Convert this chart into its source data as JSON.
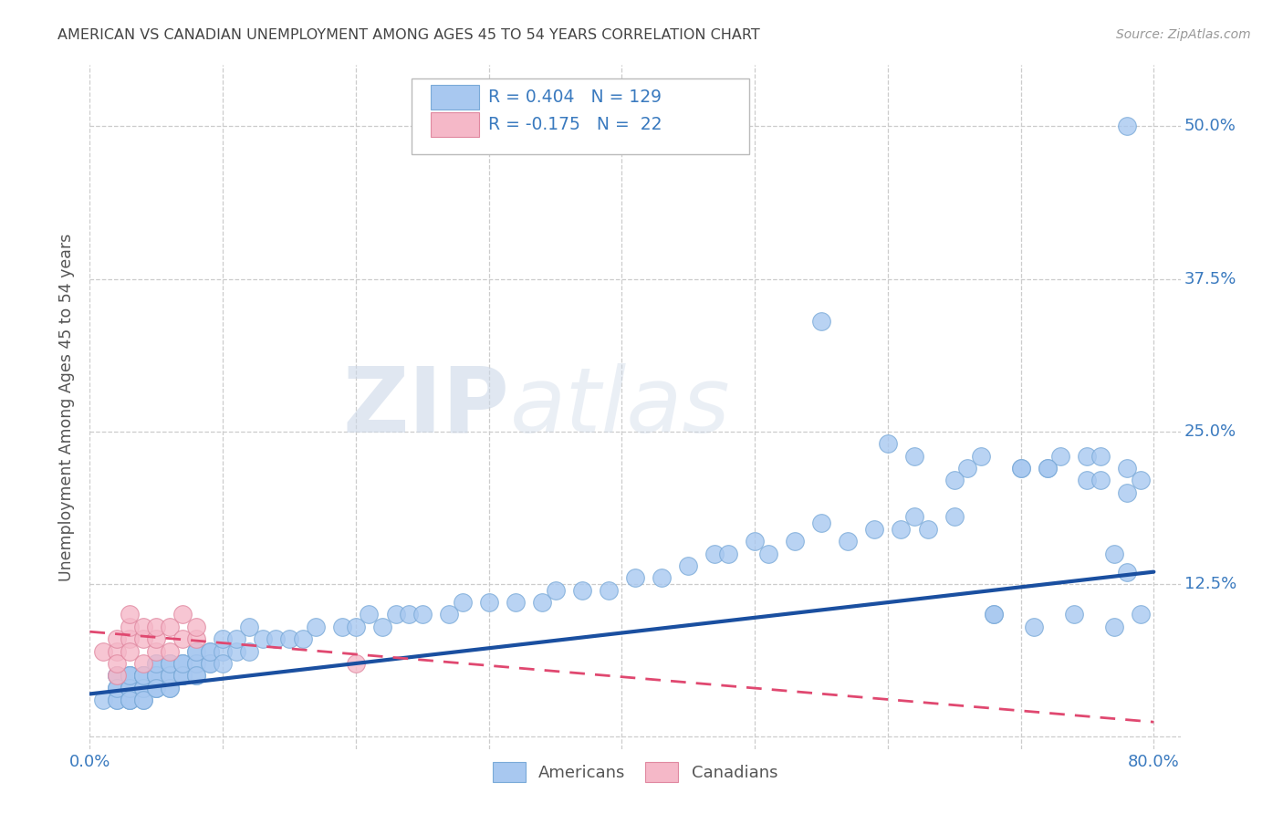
{
  "title": "AMERICAN VS CANADIAN UNEMPLOYMENT AMONG AGES 45 TO 54 YEARS CORRELATION CHART",
  "source": "Source: ZipAtlas.com",
  "ylabel": "Unemployment Among Ages 45 to 54 years",
  "xlim": [
    0.0,
    0.82
  ],
  "ylim": [
    -0.01,
    0.55
  ],
  "yticks": [
    0.0,
    0.125,
    0.25,
    0.375,
    0.5
  ],
  "yticklabels": [
    "",
    "12.5%",
    "25.0%",
    "37.5%",
    "50.0%"
  ],
  "watermark_zip": "ZIP",
  "watermark_atlas": "atlas",
  "american_color": "#a8c8f0",
  "american_edge": "#7aaad8",
  "canadian_color": "#f5b8c8",
  "canadian_edge": "#e088a0",
  "trend_american_color": "#1a4fa0",
  "trend_canadian_color": "#e04870",
  "background_color": "#ffffff",
  "grid_color": "#cccccc",
  "title_color": "#444444",
  "axis_label_color": "#3a7abf",
  "legend_text_color": "#3a7abf",
  "trend_am_x0": 0.0,
  "trend_am_x1": 0.8,
  "trend_am_y0": 0.035,
  "trend_am_y1": 0.135,
  "trend_ca_x0": 0.0,
  "trend_ca_x1": 0.8,
  "trend_ca_y0": 0.086,
  "trend_ca_y1": 0.012,
  "american_x": [
    0.01,
    0.02,
    0.02,
    0.02,
    0.02,
    0.02,
    0.02,
    0.02,
    0.03,
    0.03,
    0.03,
    0.03,
    0.03,
    0.03,
    0.03,
    0.03,
    0.03,
    0.03,
    0.03,
    0.04,
    0.04,
    0.04,
    0.04,
    0.04,
    0.04,
    0.04,
    0.04,
    0.04,
    0.05,
    0.05,
    0.05,
    0.05,
    0.05,
    0.05,
    0.05,
    0.05,
    0.06,
    0.06,
    0.06,
    0.06,
    0.06,
    0.06,
    0.06,
    0.06,
    0.07,
    0.07,
    0.07,
    0.07,
    0.07,
    0.07,
    0.08,
    0.08,
    0.08,
    0.08,
    0.08,
    0.08,
    0.09,
    0.09,
    0.09,
    0.09,
    0.1,
    0.1,
    0.1,
    0.11,
    0.11,
    0.12,
    0.12,
    0.13,
    0.14,
    0.15,
    0.16,
    0.17,
    0.19,
    0.2,
    0.21,
    0.22,
    0.23,
    0.24,
    0.25,
    0.27,
    0.28,
    0.3,
    0.32,
    0.34,
    0.35,
    0.37,
    0.39,
    0.41,
    0.43,
    0.45,
    0.47,
    0.48,
    0.5,
    0.51,
    0.53,
    0.55,
    0.57,
    0.59,
    0.61,
    0.62,
    0.63,
    0.65,
    0.66,
    0.67,
    0.68,
    0.7,
    0.71,
    0.72,
    0.73,
    0.74,
    0.75,
    0.76,
    0.77,
    0.77,
    0.78,
    0.78,
    0.79,
    0.79,
    0.78,
    0.55,
    0.6,
    0.62,
    0.65,
    0.68,
    0.7,
    0.72,
    0.75,
    0.76,
    0.78
  ],
  "american_y": [
    0.03,
    0.04,
    0.05,
    0.04,
    0.03,
    0.05,
    0.03,
    0.04,
    0.04,
    0.05,
    0.03,
    0.05,
    0.04,
    0.04,
    0.03,
    0.05,
    0.04,
    0.03,
    0.05,
    0.04,
    0.05,
    0.04,
    0.05,
    0.03,
    0.05,
    0.04,
    0.03,
    0.05,
    0.05,
    0.04,
    0.06,
    0.05,
    0.04,
    0.05,
    0.04,
    0.06,
    0.05,
    0.06,
    0.04,
    0.05,
    0.06,
    0.04,
    0.05,
    0.06,
    0.05,
    0.06,
    0.05,
    0.06,
    0.05,
    0.06,
    0.06,
    0.07,
    0.05,
    0.06,
    0.07,
    0.05,
    0.06,
    0.07,
    0.06,
    0.07,
    0.07,
    0.06,
    0.08,
    0.07,
    0.08,
    0.07,
    0.09,
    0.08,
    0.08,
    0.08,
    0.08,
    0.09,
    0.09,
    0.09,
    0.1,
    0.09,
    0.1,
    0.1,
    0.1,
    0.1,
    0.11,
    0.11,
    0.11,
    0.11,
    0.12,
    0.12,
    0.12,
    0.13,
    0.13,
    0.14,
    0.15,
    0.15,
    0.16,
    0.15,
    0.16,
    0.34,
    0.16,
    0.17,
    0.17,
    0.18,
    0.17,
    0.18,
    0.22,
    0.23,
    0.1,
    0.22,
    0.09,
    0.22,
    0.23,
    0.1,
    0.21,
    0.21,
    0.09,
    0.15,
    0.2,
    0.22,
    0.1,
    0.21,
    0.135,
    0.175,
    0.24,
    0.23,
    0.21,
    0.1,
    0.22,
    0.22,
    0.23,
    0.23,
    0.5
  ],
  "canadian_x": [
    0.01,
    0.02,
    0.02,
    0.02,
    0.02,
    0.03,
    0.03,
    0.03,
    0.03,
    0.04,
    0.04,
    0.04,
    0.05,
    0.05,
    0.05,
    0.06,
    0.06,
    0.07,
    0.07,
    0.08,
    0.08,
    0.2
  ],
  "canadian_y": [
    0.07,
    0.05,
    0.07,
    0.06,
    0.08,
    0.08,
    0.07,
    0.09,
    0.1,
    0.06,
    0.08,
    0.09,
    0.07,
    0.08,
    0.09,
    0.07,
    0.09,
    0.08,
    0.1,
    0.08,
    0.09,
    0.06
  ]
}
